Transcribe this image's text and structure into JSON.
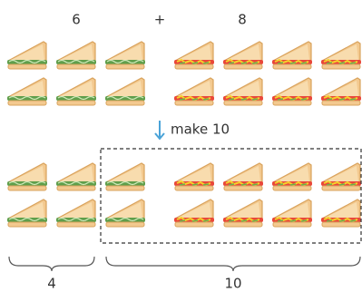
{
  "top": {
    "left": "6",
    "operator": "+",
    "right": "8"
  },
  "step": "make 10",
  "bottom": {
    "left": "4",
    "right": "10"
  }
}
